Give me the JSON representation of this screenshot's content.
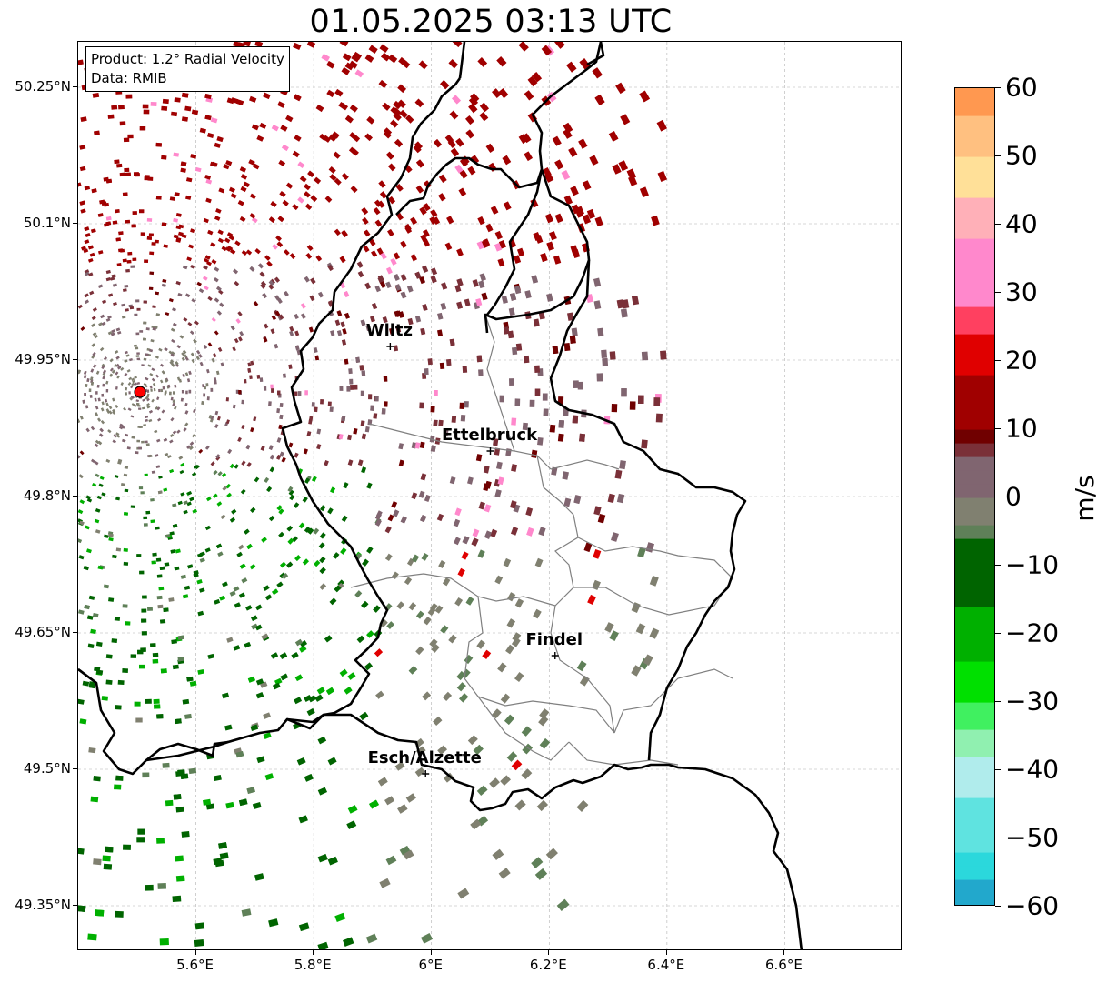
{
  "title": "01.05.2025 03:13 UTC",
  "info_box": {
    "product": "Product: 1.2° Radial Velocity",
    "data": "Data: RMIB"
  },
  "map": {
    "lon_ticks": [
      "5.6°E",
      "5.8°E",
      "6°E",
      "6.2°E",
      "6.4°E",
      "6.6°E"
    ],
    "lat_ticks": [
      "50.25°N",
      "50.1°N",
      "49.95°N",
      "49.8°N",
      "49.65°N",
      "49.5°N",
      "49.35°N"
    ],
    "lon_values": [
      5.6,
      5.8,
      6.0,
      6.2,
      6.4,
      6.6
    ],
    "lat_values": [
      50.25,
      50.1,
      49.95,
      49.8,
      49.65,
      49.5,
      49.35
    ],
    "lon_range": [
      5.4,
      6.8
    ],
    "lat_range": [
      49.3,
      50.3
    ],
    "radar_site": {
      "lon": 5.505,
      "lat": 49.915
    },
    "cities": [
      {
        "name": "Wiltz",
        "lon": 5.93,
        "lat": 49.965
      },
      {
        "name": "Ettelbruck",
        "lon": 6.1,
        "lat": 49.85
      },
      {
        "name": "Findel",
        "lon": 6.21,
        "lat": 49.625
      },
      {
        "name": "Esch/Alzette",
        "lon": 5.99,
        "lat": 49.495
      }
    ],
    "colors": {
      "border": "#000000",
      "canton": "#808080",
      "grid": "#b0b0b0",
      "radar_dot": "#ff0000"
    }
  },
  "colorbar": {
    "label": "m/s",
    "range": [
      -60,
      60
    ],
    "ticks": [
      "60",
      "50",
      "40",
      "30",
      "20",
      "10",
      "0",
      "−10",
      "−20",
      "−30",
      "−40",
      "−50",
      "−60"
    ],
    "tick_values": [
      60,
      50,
      40,
      30,
      20,
      10,
      0,
      -10,
      -20,
      -30,
      -40,
      -50,
      -60
    ],
    "stops": [
      {
        "v": -60,
        "c": "#1f77b4"
      },
      {
        "v": -56,
        "c": "#22a8cc"
      },
      {
        "v": -52,
        "c": "#2bd8dc"
      },
      {
        "v": -45,
        "c": "#5fe3e0"
      },
      {
        "v": -38,
        "c": "#b0ecec"
      },
      {
        "v": -35,
        "c": "#90f0b0"
      },
      {
        "v": -30,
        "c": "#40f060"
      },
      {
        "v": -24,
        "c": "#00e000"
      },
      {
        "v": -16,
        "c": "#00b000"
      },
      {
        "v": -7,
        "c": "#006400"
      },
      {
        "v": -5,
        "c": "#5f8058"
      },
      {
        "v": 0,
        "c": "#808070"
      },
      {
        "v": 5,
        "c": "#806570"
      },
      {
        "v": 8,
        "c": "#7a3038"
      },
      {
        "v": 10,
        "c": "#700000"
      },
      {
        "v": 18,
        "c": "#a00000"
      },
      {
        "v": 24,
        "c": "#e00000"
      },
      {
        "v": 28,
        "c": "#ff4060"
      },
      {
        "v": 38,
        "c": "#ff88cc"
      },
      {
        "v": 44,
        "c": "#ffb0b8"
      },
      {
        "v": 50,
        "c": "#ffe098"
      },
      {
        "v": 55,
        "c": "#ffc080"
      },
      {
        "v": 60,
        "c": "#ff9850"
      }
    ]
  }
}
